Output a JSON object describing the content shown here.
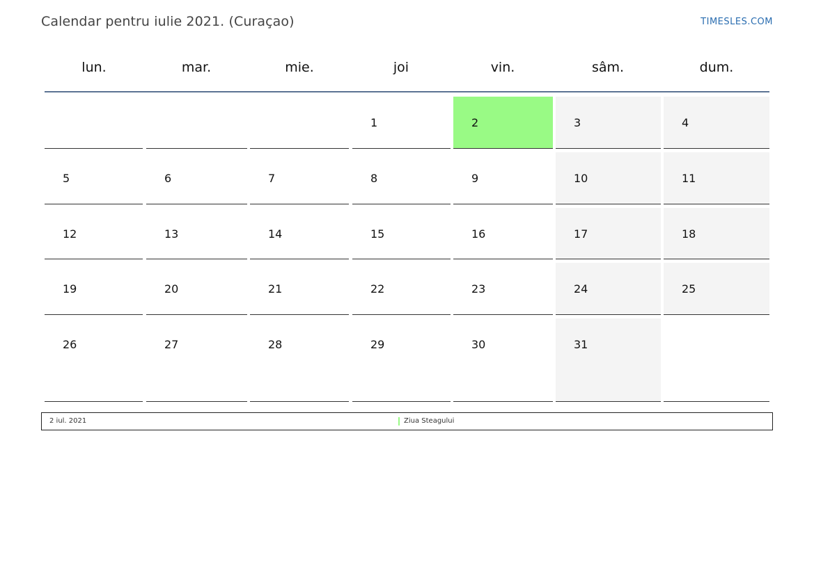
{
  "header": {
    "title": "Calendar pentru iulie 2021. (Curaçao)",
    "brand": "TIMESLES.COM"
  },
  "weekdays": [
    "lun.",
    "mar.",
    "mie.",
    "joi",
    "vin.",
    "sâm.",
    "dum."
  ],
  "weeks": [
    [
      "",
      "",
      "",
      "1",
      "2",
      "3",
      "4"
    ],
    [
      "5",
      "6",
      "7",
      "8",
      "9",
      "10",
      "11"
    ],
    [
      "12",
      "13",
      "14",
      "15",
      "16",
      "17",
      "18"
    ],
    [
      "19",
      "20",
      "21",
      "22",
      "23",
      "24",
      "25"
    ],
    [
      "26",
      "27",
      "28",
      "29",
      "30",
      "31",
      ""
    ]
  ],
  "holiday": {
    "date": "2 iul. 2021",
    "name": "Ziua Steagului",
    "day": 2
  },
  "colors": {
    "holiday": "#99fa85",
    "weekend": "#f4f4f4",
    "header_line": "#5b7393",
    "brand": "#2a6db0"
  }
}
